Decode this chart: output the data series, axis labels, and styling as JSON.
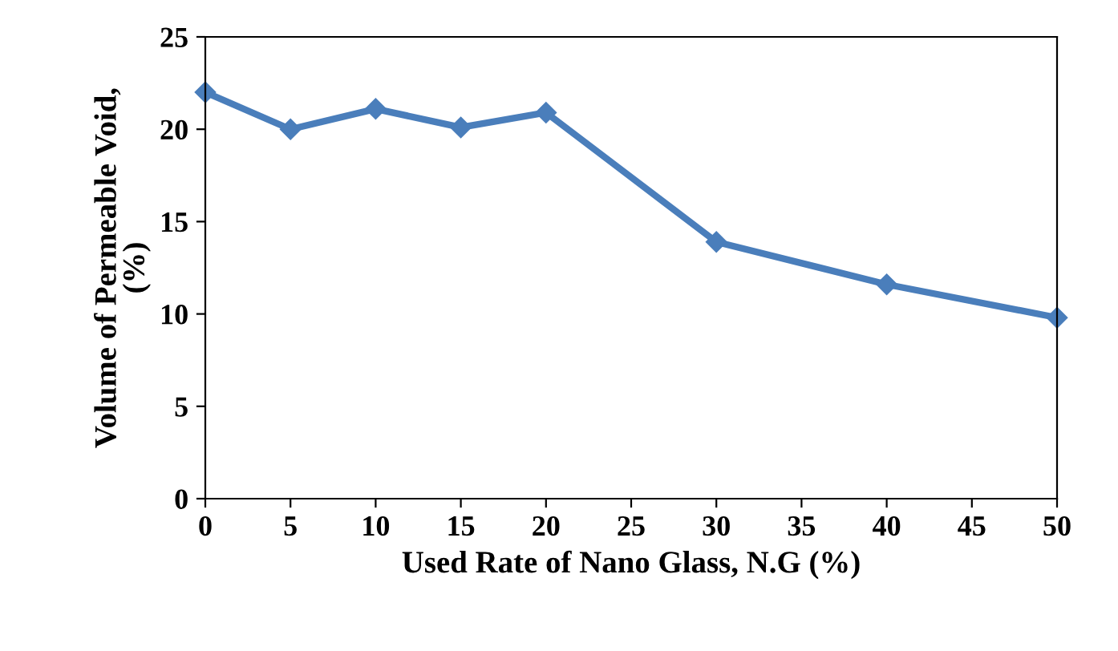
{
  "chart_data": {
    "type": "line",
    "xlabel": "Used Rate of Nano Glass, N.G (%)",
    "ylabel": "Volume of Permeable Void,\n(%)",
    "x": [
      0,
      5,
      10,
      15,
      20,
      30,
      40,
      50
    ],
    "series": [
      {
        "color": "#4a7ebb",
        "values": [
          22.0,
          20.0,
          21.1,
          20.1,
          20.9,
          13.9,
          11.6,
          9.8
        ]
      }
    ],
    "xlim": [
      0,
      50
    ],
    "xticks": [
      0,
      5,
      10,
      15,
      20,
      25,
      30,
      35,
      40,
      45,
      50
    ],
    "ylim": [
      0,
      25
    ],
    "yticks": [
      0,
      5,
      10,
      15,
      20,
      25
    ],
    "marker": "diamond",
    "line_style": "solid",
    "grid": false,
    "legend": false
  }
}
